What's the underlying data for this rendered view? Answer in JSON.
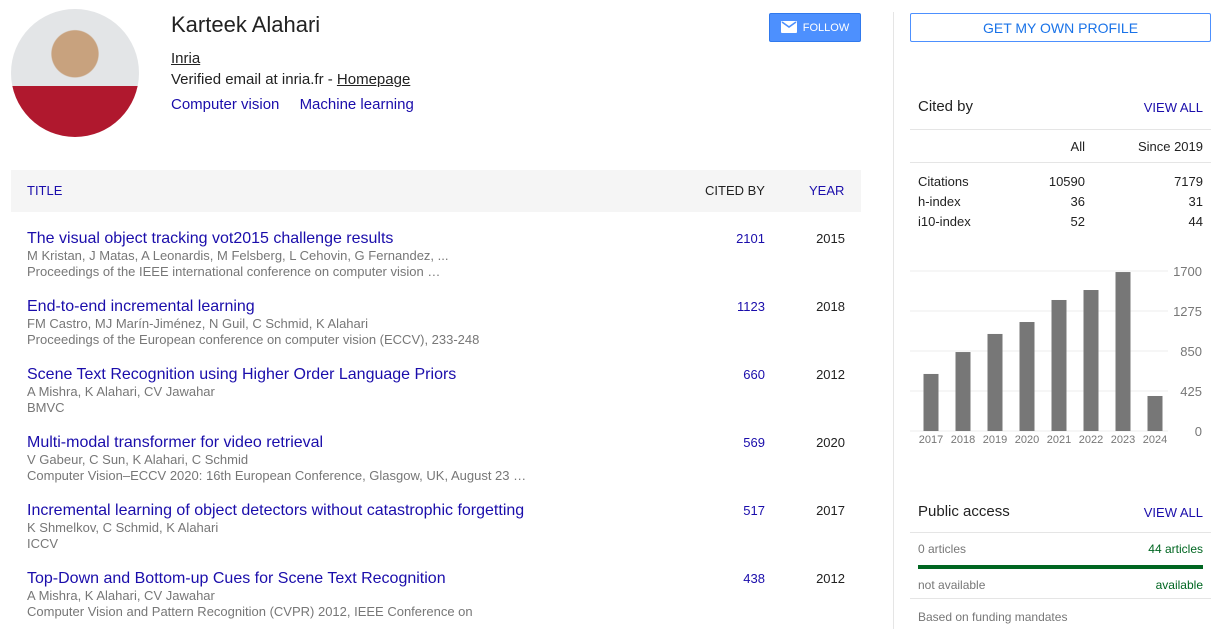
{
  "profile": {
    "name": "Karteek Alahari",
    "affiliation": "Inria",
    "email_text": "Verified email at inria.fr - ",
    "homepage": "Homepage",
    "interests": [
      "Computer vision",
      "Machine learning"
    ],
    "follow_label": "FOLLOW"
  },
  "table": {
    "col_title": "TITLE",
    "col_cited": "CITED BY",
    "col_year": "YEAR",
    "rows": [
      {
        "title": "The visual object tracking vot2015 challenge results",
        "authors": "M Kristan, J Matas, A Leonardis, M Felsberg, L Cehovin, G Fernandez, ...",
        "venue": "Proceedings of the IEEE international conference on computer vision …",
        "cited": "2101",
        "year": "2015"
      },
      {
        "title": "End-to-end incremental learning",
        "authors": "FM Castro, MJ Marín-Jiménez, N Guil, C Schmid, K Alahari",
        "venue": "Proceedings of the European conference on computer vision (ECCV), 233-248",
        "cited": "1123",
        "year": "2018"
      },
      {
        "title": "Scene Text Recognition using Higher Order Language Priors",
        "authors": "A Mishra, K Alahari, CV Jawahar",
        "venue": "BMVC",
        "cited": "660",
        "year": "2012"
      },
      {
        "title": "Multi-modal transformer for video retrieval",
        "authors": "V Gabeur, C Sun, K Alahari, C Schmid",
        "venue": "Computer Vision–ECCV 2020: 16th European Conference, Glasgow, UK, August 23 …",
        "cited": "569",
        "year": "2020"
      },
      {
        "title": "Incremental learning of object detectors without catastrophic forgetting",
        "authors": "K Shmelkov, C Schmid, K Alahari",
        "venue": "ICCV",
        "cited": "517",
        "year": "2017"
      },
      {
        "title": "Top-Down and Bottom-up Cues for Scene Text Recognition",
        "authors": "A Mishra, K Alahari, CV Jawahar",
        "venue": "Computer Vision and Pattern Recognition (CVPR) 2012, IEEE Conference on",
        "cited": "438",
        "year": "2012"
      }
    ]
  },
  "sidebar": {
    "get_profile": "GET MY OWN PROFILE",
    "cited_by": "Cited by",
    "view_all": "VIEW ALL",
    "col_all": "All",
    "col_since": "Since 2019",
    "metrics": [
      {
        "label": "Citations",
        "all": "10590",
        "since": "7179"
      },
      {
        "label": "h-index",
        "all": "36",
        "since": "31"
      },
      {
        "label": "i10-index",
        "all": "52",
        "since": "44"
      }
    ],
    "public_access": "Public access",
    "pa_view_all": "VIEW ALL",
    "not_avail_count": "0 articles",
    "avail_count": "44 articles",
    "not_avail": "not available",
    "avail": "available",
    "mandates": "Based on funding mandates",
    "available_fraction": 1.0,
    "bar_color": "#006621"
  },
  "chart_data": {
    "type": "bar",
    "categories": [
      "2017",
      "2018",
      "2019",
      "2020",
      "2021",
      "2022",
      "2023",
      "2024"
    ],
    "values": [
      606,
      839,
      1031,
      1158,
      1392,
      1498,
      1689,
      372
    ],
    "yticks": [
      "0",
      "425",
      "850",
      "1275",
      "1700"
    ],
    "ylim": [
      0,
      1700
    ],
    "bar_color": "#777777",
    "grid": true
  }
}
